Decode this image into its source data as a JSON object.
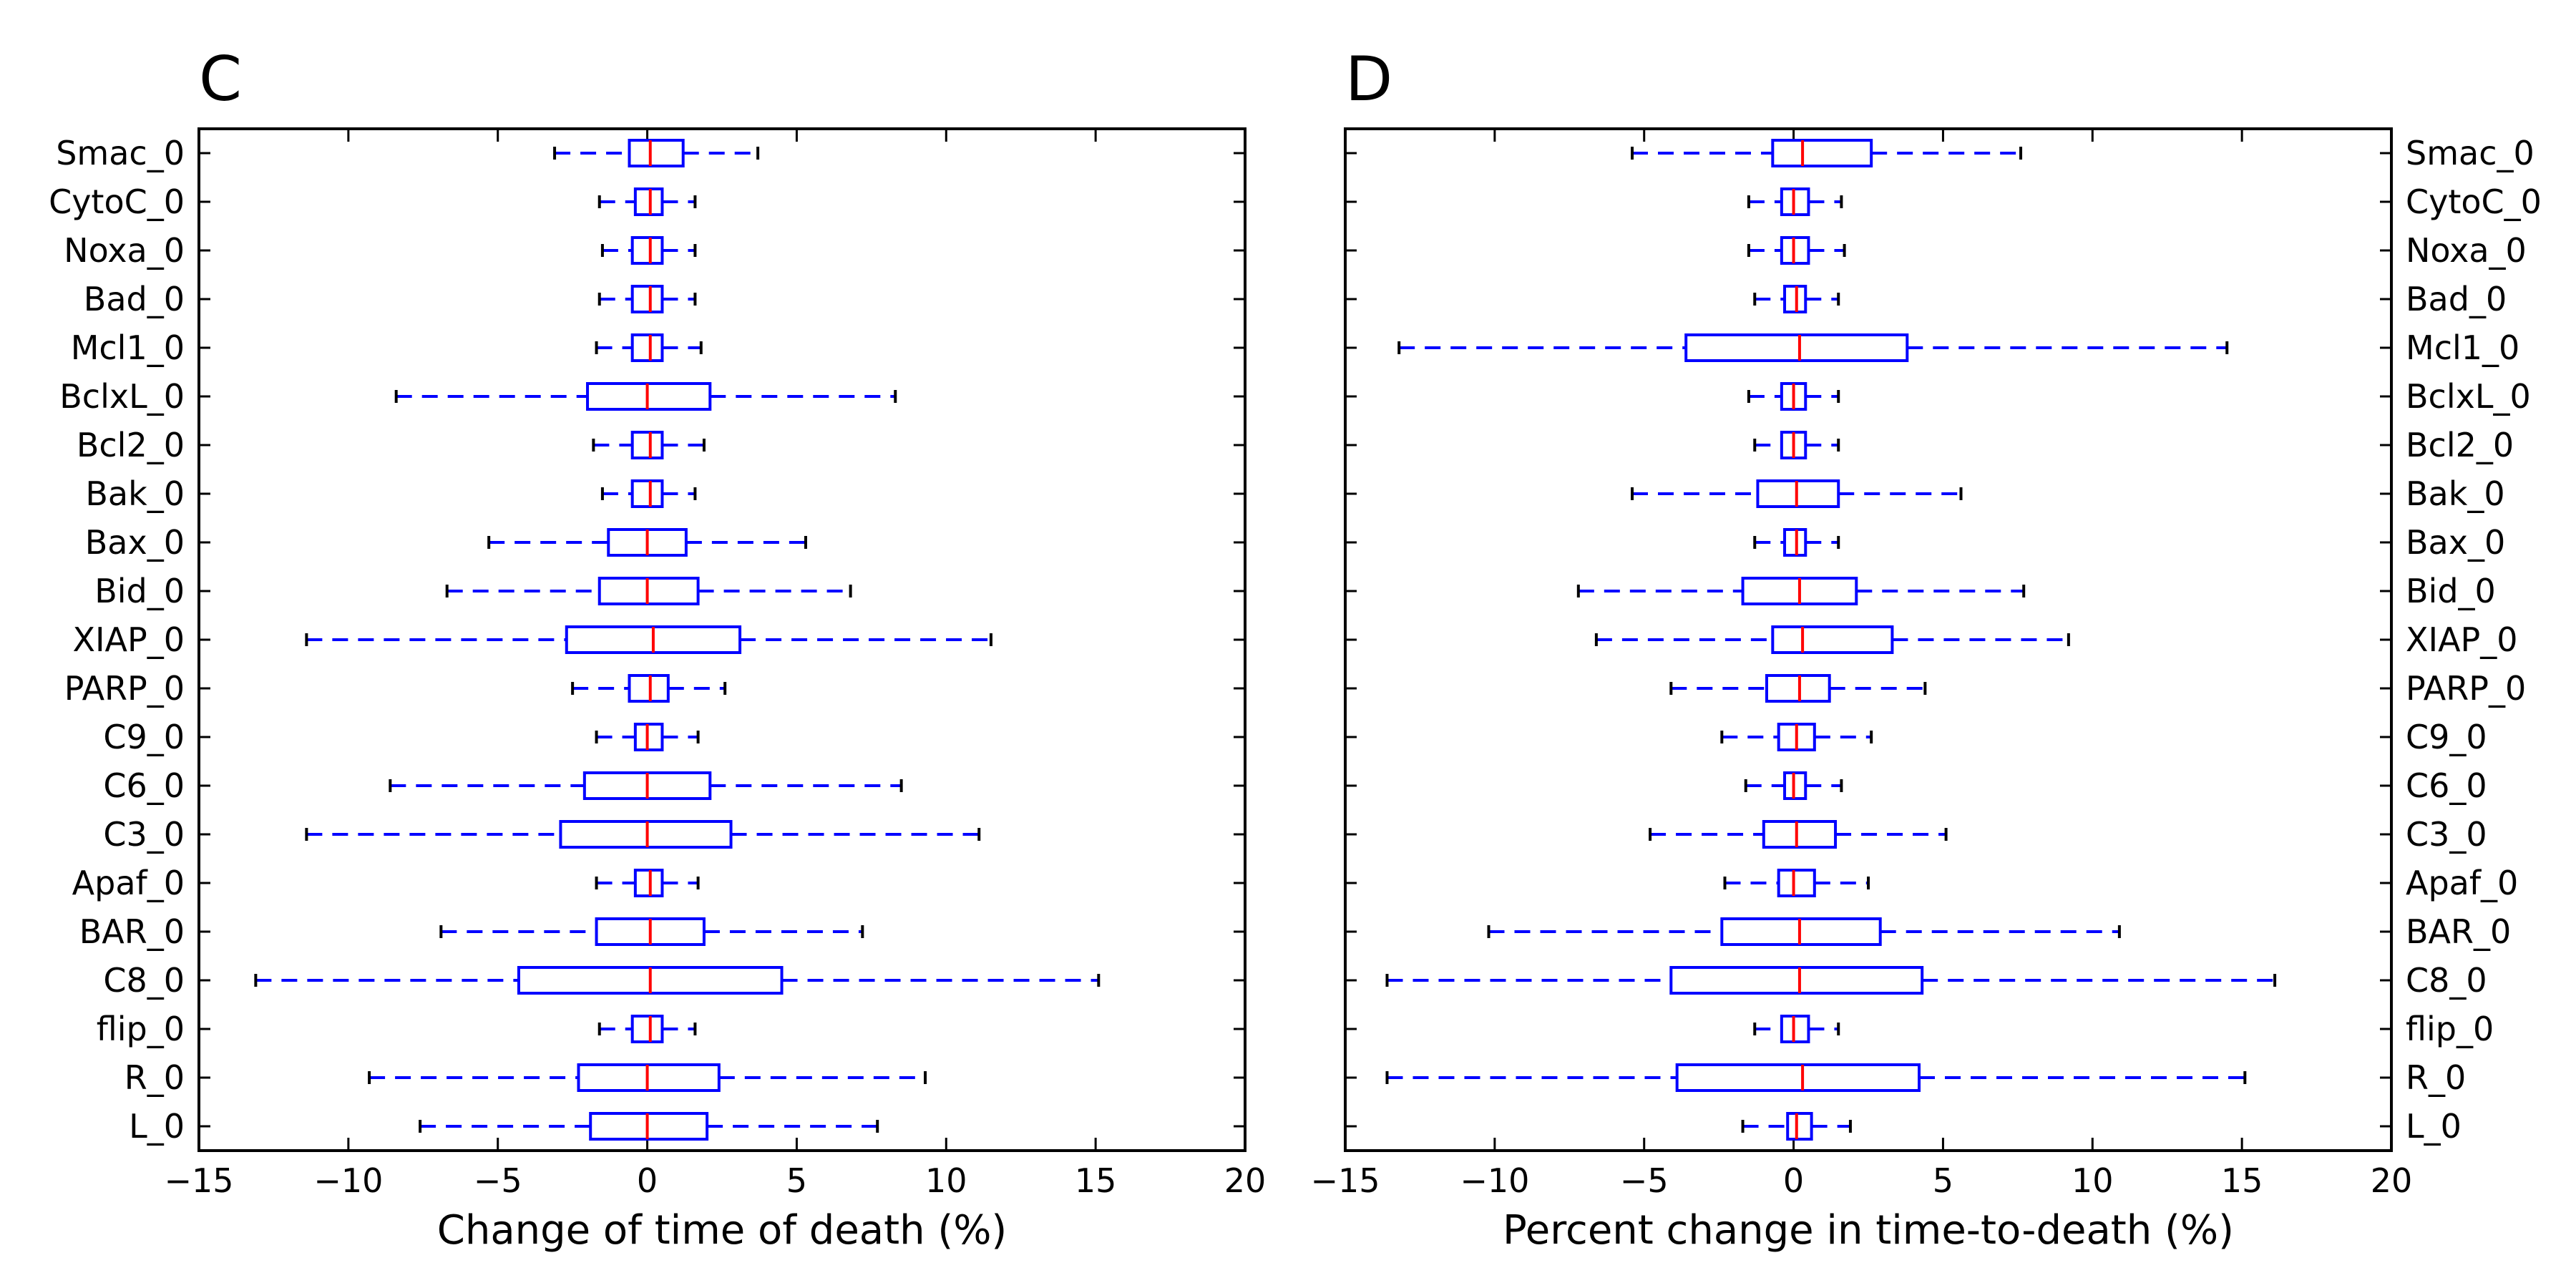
{
  "chart_data": [
    {
      "type": "boxplot",
      "panel_label": "C",
      "orientation": "horizontal",
      "xlabel": "Change of time of death (%)",
      "xlim": [
        -15,
        20
      ],
      "xticks": [
        -15,
        -10,
        -5,
        0,
        5,
        10,
        15,
        20
      ],
      "xtick_labels": [
        "−15",
        "−10",
        "−5",
        "0",
        "5",
        "10",
        "15",
        "20"
      ],
      "ytick_side": "left",
      "colors": {
        "box": "#0000ff",
        "median": "#ff0000",
        "whisker": "#0000ff"
      },
      "categories": [
        "Smac_0",
        "CytoC_0",
        "Noxa_0",
        "Bad_0",
        "Mcl1_0",
        "BclxL_0",
        "Bcl2_0",
        "Bak_0",
        "Bax_0",
        "Bid_0",
        "XIAP_0",
        "PARP_0",
        "C9_0",
        "C6_0",
        "C3_0",
        "Apaf_0",
        "BAR_0",
        "C8_0",
        "flip_0",
        "R_0",
        "L_0"
      ],
      "boxes": [
        {
          "whislo": -3.1,
          "q1": -0.6,
          "med": 0.1,
          "q3": 1.2,
          "whishi": 3.7
        },
        {
          "whislo": -1.6,
          "q1": -0.4,
          "med": 0.1,
          "q3": 0.5,
          "whishi": 1.6
        },
        {
          "whislo": -1.5,
          "q1": -0.5,
          "med": 0.1,
          "q3": 0.5,
          "whishi": 1.6
        },
        {
          "whislo": -1.6,
          "q1": -0.5,
          "med": 0.1,
          "q3": 0.5,
          "whishi": 1.6
        },
        {
          "whislo": -1.7,
          "q1": -0.5,
          "med": 0.1,
          "q3": 0.5,
          "whishi": 1.8
        },
        {
          "whislo": -8.4,
          "q1": -2.0,
          "med": 0.0,
          "q3": 2.1,
          "whishi": 8.3
        },
        {
          "whislo": -1.8,
          "q1": -0.5,
          "med": 0.1,
          "q3": 0.5,
          "whishi": 1.9
        },
        {
          "whislo": -1.5,
          "q1": -0.5,
          "med": 0.1,
          "q3": 0.5,
          "whishi": 1.6
        },
        {
          "whislo": -5.3,
          "q1": -1.3,
          "med": 0.0,
          "q3": 1.3,
          "whishi": 5.3
        },
        {
          "whislo": -6.7,
          "q1": -1.6,
          "med": 0.0,
          "q3": 1.7,
          "whishi": 6.8
        },
        {
          "whislo": -11.4,
          "q1": -2.7,
          "med": 0.2,
          "q3": 3.1,
          "whishi": 11.5
        },
        {
          "whislo": -2.5,
          "q1": -0.6,
          "med": 0.1,
          "q3": 0.7,
          "whishi": 2.6
        },
        {
          "whislo": -1.7,
          "q1": -0.4,
          "med": 0.0,
          "q3": 0.5,
          "whishi": 1.7
        },
        {
          "whislo": -8.6,
          "q1": -2.1,
          "med": 0.0,
          "q3": 2.1,
          "whishi": 8.5
        },
        {
          "whislo": -11.4,
          "q1": -2.9,
          "med": 0.0,
          "q3": 2.8,
          "whishi": 11.1
        },
        {
          "whislo": -1.7,
          "q1": -0.4,
          "med": 0.1,
          "q3": 0.5,
          "whishi": 1.7
        },
        {
          "whislo": -6.9,
          "q1": -1.7,
          "med": 0.1,
          "q3": 1.9,
          "whishi": 7.2
        },
        {
          "whislo": -13.1,
          "q1": -4.3,
          "med": 0.1,
          "q3": 4.5,
          "whishi": 15.1
        },
        {
          "whislo": -1.6,
          "q1": -0.5,
          "med": 0.1,
          "q3": 0.5,
          "whishi": 1.6
        },
        {
          "whislo": -9.3,
          "q1": -2.3,
          "med": 0.0,
          "q3": 2.4,
          "whishi": 9.3
        },
        {
          "whislo": -7.6,
          "q1": -1.9,
          "med": 0.0,
          "q3": 2.0,
          "whishi": 7.7
        }
      ]
    },
    {
      "type": "boxplot",
      "panel_label": "D",
      "orientation": "horizontal",
      "xlabel": "Percent change in time-to-death (%)",
      "xlim": [
        -15,
        20
      ],
      "xticks": [
        -15,
        -10,
        -5,
        0,
        5,
        10,
        15,
        20
      ],
      "xtick_labels": [
        "−15",
        "−10",
        "−5",
        "0",
        "5",
        "10",
        "15",
        "20"
      ],
      "ytick_side": "right",
      "colors": {
        "box": "#0000ff",
        "median": "#ff0000",
        "whisker": "#0000ff"
      },
      "categories": [
        "Smac_0",
        "CytoC_0",
        "Noxa_0",
        "Bad_0",
        "Mcl1_0",
        "BclxL_0",
        "Bcl2_0",
        "Bak_0",
        "Bax_0",
        "Bid_0",
        "XIAP_0",
        "PARP_0",
        "C9_0",
        "C6_0",
        "C3_0",
        "Apaf_0",
        "BAR_0",
        "C8_0",
        "flip_0",
        "R_0",
        "L_0"
      ],
      "boxes": [
        {
          "whislo": -5.4,
          "q1": -0.7,
          "med": 0.3,
          "q3": 2.6,
          "whishi": 7.6
        },
        {
          "whislo": -1.5,
          "q1": -0.4,
          "med": 0.0,
          "q3": 0.5,
          "whishi": 1.6
        },
        {
          "whislo": -1.5,
          "q1": -0.4,
          "med": 0.0,
          "q3": 0.5,
          "whishi": 1.7
        },
        {
          "whislo": -1.3,
          "q1": -0.3,
          "med": 0.1,
          "q3": 0.4,
          "whishi": 1.5
        },
        {
          "whislo": -13.2,
          "q1": -3.6,
          "med": 0.2,
          "q3": 3.8,
          "whishi": 14.5
        },
        {
          "whislo": -1.5,
          "q1": -0.4,
          "med": 0.0,
          "q3": 0.4,
          "whishi": 1.5
        },
        {
          "whislo": -1.3,
          "q1": -0.4,
          "med": 0.0,
          "q3": 0.4,
          "whishi": 1.5
        },
        {
          "whislo": -5.4,
          "q1": -1.2,
          "med": 0.1,
          "q3": 1.5,
          "whishi": 5.6
        },
        {
          "whislo": -1.3,
          "q1": -0.3,
          "med": 0.1,
          "q3": 0.4,
          "whishi": 1.5
        },
        {
          "whislo": -7.2,
          "q1": -1.7,
          "med": 0.2,
          "q3": 2.1,
          "whishi": 7.7
        },
        {
          "whislo": -6.6,
          "q1": -0.7,
          "med": 0.3,
          "q3": 3.3,
          "whishi": 9.2
        },
        {
          "whislo": -4.1,
          "q1": -0.9,
          "med": 0.2,
          "q3": 1.2,
          "whishi": 4.4
        },
        {
          "whislo": -2.4,
          "q1": -0.5,
          "med": 0.1,
          "q3": 0.7,
          "whishi": 2.6
        },
        {
          "whislo": -1.6,
          "q1": -0.3,
          "med": 0.0,
          "q3": 0.4,
          "whishi": 1.6
        },
        {
          "whislo": -4.8,
          "q1": -1.0,
          "med": 0.1,
          "q3": 1.4,
          "whishi": 5.1
        },
        {
          "whislo": -2.3,
          "q1": -0.5,
          "med": 0.0,
          "q3": 0.7,
          "whishi": 2.5
        },
        {
          "whislo": -10.2,
          "q1": -2.4,
          "med": 0.2,
          "q3": 2.9,
          "whishi": 10.9
        },
        {
          "whislo": -13.6,
          "q1": -4.1,
          "med": 0.2,
          "q3": 4.3,
          "whishi": 16.1
        },
        {
          "whislo": -1.3,
          "q1": -0.4,
          "med": 0.0,
          "q3": 0.5,
          "whishi": 1.5
        },
        {
          "whislo": -13.6,
          "q1": -3.9,
          "med": 0.3,
          "q3": 4.2,
          "whishi": 15.1
        },
        {
          "whislo": -1.7,
          "q1": -0.2,
          "med": 0.1,
          "q3": 0.6,
          "whishi": 1.9
        }
      ]
    }
  ]
}
